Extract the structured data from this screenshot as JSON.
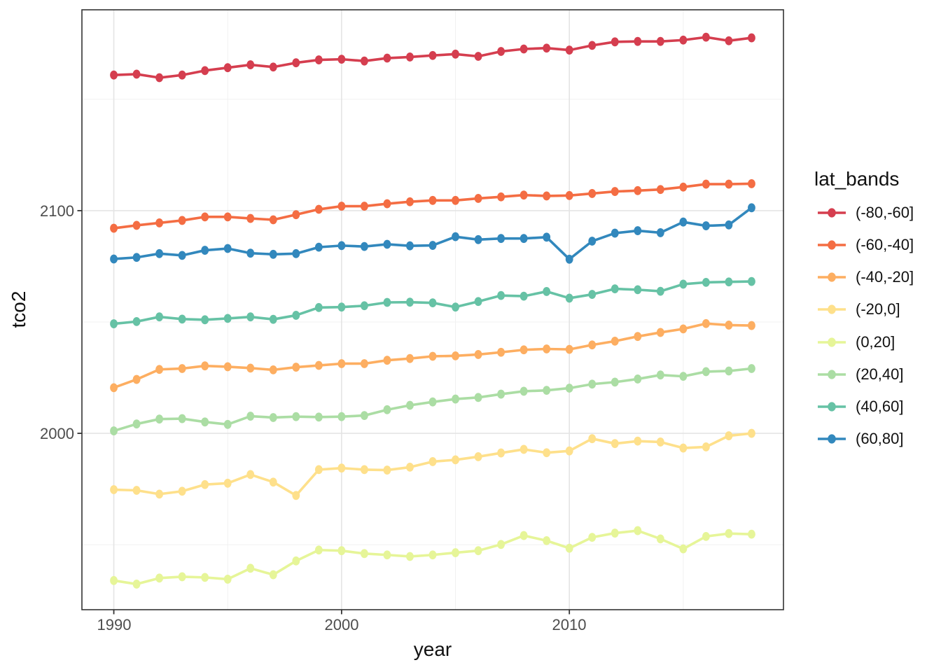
{
  "figure": {
    "xlabel": "year",
    "ylabel": "tco2",
    "legend_title": "lat_bands"
  },
  "chart_data": {
    "type": "line",
    "title": "",
    "xlabel": "year",
    "ylabel": "tco2",
    "legend_title": "lat_bands",
    "legend_position": "right",
    "grid": true,
    "marker": "point",
    "x": [
      1990,
      1991,
      1992,
      1993,
      1994,
      1995,
      1996,
      1997,
      1998,
      1999,
      2000,
      2001,
      2002,
      2003,
      2004,
      2005,
      2006,
      2007,
      2008,
      2009,
      2010,
      2011,
      2012,
      2013,
      2014,
      2015,
      2016,
      2017,
      2018
    ],
    "xlim": [
      1988.6,
      2019.4
    ],
    "ylim": [
      1920.8,
      2190.2
    ],
    "x_major_ticks": [
      1990,
      2000,
      2010
    ],
    "x_tick_labels": [
      "1990",
      "2000",
      "2010"
    ],
    "x_minor_gridlines": [
      1995,
      2005,
      2015
    ],
    "y_major_ticks": [
      2000,
      2100
    ],
    "y_tick_labels": [
      "2000",
      "2100"
    ],
    "y_minor_gridlines": [
      1950,
      2050,
      2150
    ],
    "series": [
      {
        "name": "(-80,-60]",
        "color": "#d53e4f",
        "values": [
          2160.9,
          2161.3,
          2159.7,
          2160.9,
          2162.9,
          2164.2,
          2165.5,
          2164.5,
          2166.4,
          2167.7,
          2168.0,
          2167.2,
          2168.5,
          2169.0,
          2169.7,
          2170.3,
          2169.3,
          2171.5,
          2172.6,
          2173.0,
          2172.1,
          2174.2,
          2175.8,
          2176.0,
          2176.0,
          2176.6,
          2177.9,
          2176.3,
          2177.6
        ]
      },
      {
        "name": "(-60,-40]",
        "color": "#f46d43",
        "values": [
          2092.1,
          2093.4,
          2094.5,
          2095.6,
          2097.2,
          2097.2,
          2096.5,
          2095.9,
          2098.2,
          2100.6,
          2102.0,
          2102.0,
          2103.1,
          2104.0,
          2104.6,
          2104.6,
          2105.5,
          2106.2,
          2107.0,
          2106.6,
          2106.8,
          2107.7,
          2108.6,
          2109.0,
          2109.5,
          2110.6,
          2111.9,
          2111.9,
          2112.1
        ]
      },
      {
        "name": "(-40,-20]",
        "color": "#fdae61",
        "values": [
          2020.5,
          2024.2,
          2028.7,
          2029.1,
          2030.3,
          2029.9,
          2029.3,
          2028.5,
          2029.7,
          2030.5,
          2031.3,
          2031.3,
          2032.8,
          2033.6,
          2034.6,
          2034.8,
          2035.4,
          2036.4,
          2037.5,
          2037.9,
          2037.7,
          2039.7,
          2041.4,
          2043.5,
          2045.3,
          2046.9,
          2049.3,
          2048.6,
          2048.4
        ]
      },
      {
        "name": "(-20,0]",
        "color": "#fee08b",
        "values": [
          1974.7,
          1974.4,
          1972.7,
          1974.0,
          1977.0,
          1977.6,
          1981.5,
          1978.1,
          1972.1,
          1983.7,
          1984.4,
          1983.7,
          1983.5,
          1984.8,
          1987.3,
          1988.1,
          1989.5,
          1991.2,
          1992.8,
          1991.3,
          1992.1,
          1997.6,
          1995.4,
          1996.5,
          1996.1,
          1993.4,
          1993.9,
          1998.9,
          2000.0
        ]
      },
      {
        "name": "(0,20]",
        "color": "#e6f598",
        "values": [
          1933.9,
          1932.3,
          1935.0,
          1935.6,
          1935.3,
          1934.5,
          1939.4,
          1936.5,
          1942.7,
          1947.6,
          1947.3,
          1946.0,
          1945.4,
          1944.7,
          1945.4,
          1946.4,
          1947.3,
          1950.1,
          1954.1,
          1951.8,
          1948.4,
          1953.3,
          1955.2,
          1956.3,
          1952.6,
          1948.1,
          1953.7,
          1955.0,
          1954.7
        ]
      },
      {
        "name": "(20,40]",
        "color": "#abdda4",
        "values": [
          2001.1,
          2004.2,
          2006.4,
          2006.6,
          2005.1,
          2004.0,
          2007.7,
          2007.1,
          2007.5,
          2007.3,
          2007.5,
          2008.0,
          2010.6,
          2012.6,
          2014.1,
          2015.4,
          2016.1,
          2017.6,
          2018.9,
          2019.3,
          2020.3,
          2022.1,
          2023.0,
          2024.4,
          2026.2,
          2025.6,
          2027.7,
          2028.0,
          2029.1
        ]
      },
      {
        "name": "(40,60]",
        "color": "#66c2a5",
        "values": [
          2049.2,
          2050.2,
          2052.3,
          2051.3,
          2051.0,
          2051.6,
          2052.3,
          2051.2,
          2053.0,
          2056.5,
          2056.7,
          2057.3,
          2058.8,
          2058.9,
          2058.6,
          2056.7,
          2059.2,
          2061.9,
          2061.6,
          2063.7,
          2060.7,
          2062.4,
          2064.9,
          2064.5,
          2063.8,
          2067.0,
          2067.8,
          2068.0,
          2068.2
        ]
      },
      {
        "name": "(60,80]",
        "color": "#3288bd",
        "values": [
          2078.3,
          2079.0,
          2080.7,
          2079.9,
          2082.2,
          2083.0,
          2080.9,
          2080.4,
          2080.7,
          2083.6,
          2084.3,
          2083.9,
          2084.9,
          2084.2,
          2084.4,
          2088.3,
          2087.0,
          2087.5,
          2087.5,
          2088.1,
          2078.2,
          2086.3,
          2089.9,
          2091.0,
          2090.1,
          2094.9,
          2093.2,
          2093.6,
          2101.3
        ]
      }
    ]
  }
}
